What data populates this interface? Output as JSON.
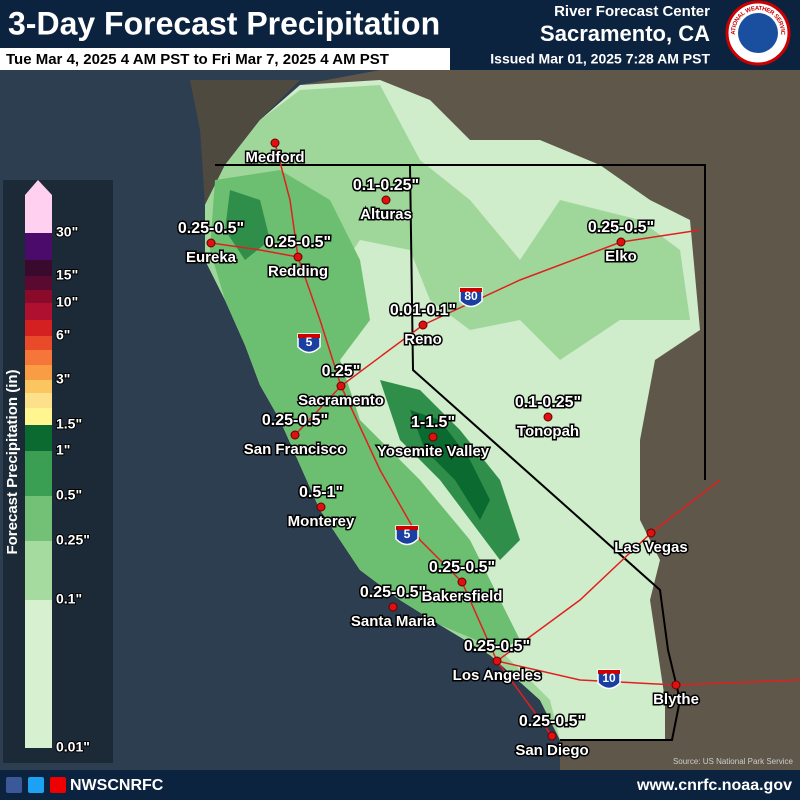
{
  "header": {
    "title": "3-Day Forecast Precipitation",
    "valid": "Tue Mar 4, 2025 4 AM PST to Fri Mar 7, 2025 4 AM PST",
    "office": "River Forecast Center",
    "location": "Sacramento, CA",
    "issued": "Issued Mar 01, 2025 7:28 AM PST",
    "logo": "NATIONAL WEATHER SERVICE"
  },
  "legend": {
    "title": "Forecast Precipitation (in)",
    "labels": [
      "30\"",
      "15\"",
      "10\"",
      "6\"",
      "3\"",
      "1.5\"",
      "1\"",
      "0.5\"",
      "0.25\"",
      "0.1\"",
      "0.01\""
    ]
  },
  "cities": [
    {
      "name": "Medford"
    },
    {
      "name": "Alturas",
      "amount": "0.1-0.25\""
    },
    {
      "name": "Eureka",
      "amount": "0.25-0.5\""
    },
    {
      "name": "Redding",
      "amount": "0.25-0.5\""
    },
    {
      "name": "Elko",
      "amount": "0.25-0.5\""
    },
    {
      "name": "Reno",
      "amount": "0.01-0.1\""
    },
    {
      "name": "Sacramento",
      "amount": "0.25\""
    },
    {
      "name": "San Francisco",
      "amount": "0.25-0.5\""
    },
    {
      "name": "Yosemite Valley",
      "amount": "1-1.5\""
    },
    {
      "name": "Tonopah",
      "amount": "0.1-0.25\""
    },
    {
      "name": "Monterey",
      "amount": "0.5-1\""
    },
    {
      "name": "Las Vegas"
    },
    {
      "name": "Bakersfield",
      "amount": "0.25-0.5\""
    },
    {
      "name": "Santa Maria",
      "amount": "0.25-0.5\""
    },
    {
      "name": "Los Angeles",
      "amount": "0.25-0.5\""
    },
    {
      "name": "Blythe"
    },
    {
      "name": "San Diego",
      "amount": "0.25-0.5\""
    }
  ],
  "shields": [
    "5",
    "80",
    "5",
    "10"
  ],
  "source": "Source: US National Park Service",
  "footer": {
    "social": "NWSCNRFC",
    "website": "www.cnrfc.noaa.gov"
  }
}
